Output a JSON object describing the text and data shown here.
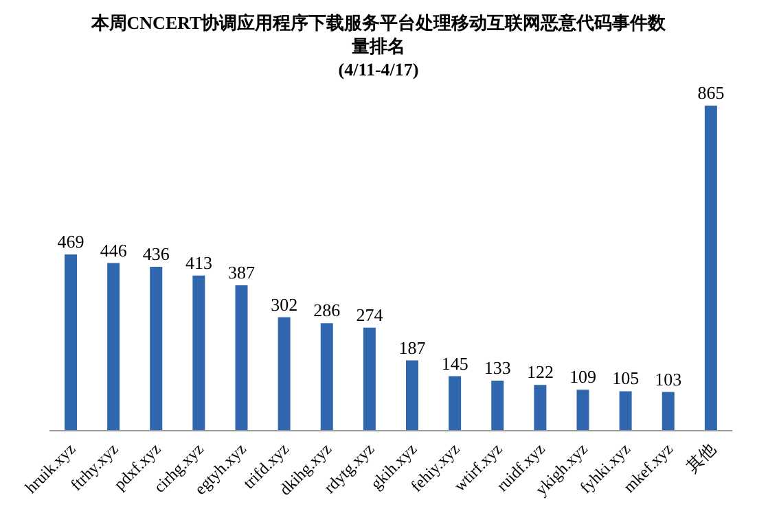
{
  "chart_data": {
    "type": "bar",
    "title": "本周CNCERT协调应用程序下载服务平台处理移动互联网恶意代码事件数量排名",
    "subtitle": "(4/11-4/17)",
    "categories": [
      "hruik.xyz",
      "ftrhy.xyz",
      "pdxf.xyz",
      "cirhg.xyz",
      "egtyh.xyz",
      "trifd.xyz",
      "dkihg.xyz",
      "rdytg.xyz",
      "gkih.xyz",
      "fehiy.xyz",
      "wtirf.xyz",
      "ruidf.xyz",
      "ykigh.xyz",
      "fyhki.xyz",
      "mkef.xyz",
      "其他"
    ],
    "values": [
      469,
      446,
      436,
      413,
      387,
      302,
      286,
      274,
      187,
      145,
      133,
      122,
      109,
      105,
      103,
      865
    ],
    "color": "#2f66ad",
    "data_labels": true
  }
}
